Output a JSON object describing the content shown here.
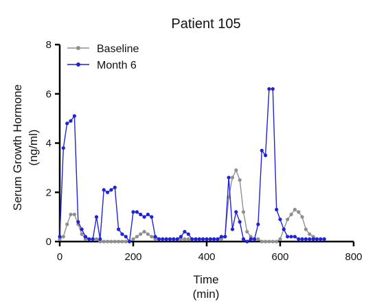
{
  "colors": {
    "baseline": "#8f8f8f",
    "month6": "#1f22d6",
    "axis": "#000000",
    "background": "#ffffff"
  },
  "chart_data": {
    "type": "line",
    "title": "Patient 105",
    "xlabel_line1": "Time",
    "xlabel_line2": "(min)",
    "ylabel_line1": "Serum Growth Hormone",
    "ylabel_line2": "(ng/ml)",
    "xlim": [
      0,
      800
    ],
    "ylim": [
      0,
      8
    ],
    "x_ticks": [
      0,
      200,
      400,
      600,
      800
    ],
    "y_ticks": [
      0,
      2,
      4,
      6,
      8
    ],
    "grid": false,
    "legend_position": "top-left",
    "series": [
      {
        "name": "Baseline",
        "color": "#8f8f8f",
        "x": [
          0,
          10,
          20,
          30,
          40,
          50,
          60,
          70,
          80,
          90,
          100,
          110,
          120,
          130,
          140,
          150,
          160,
          170,
          180,
          190,
          200,
          210,
          220,
          230,
          240,
          250,
          260,
          270,
          280,
          290,
          300,
          310,
          320,
          330,
          340,
          350,
          360,
          370,
          380,
          390,
          400,
          410,
          420,
          430,
          440,
          450,
          460,
          470,
          480,
          490,
          500,
          510,
          520,
          530,
          540,
          550,
          560,
          570,
          580,
          590,
          600,
          610,
          620,
          630,
          640,
          650,
          660,
          670,
          680,
          690,
          700,
          710,
          720
        ],
        "values": [
          0.1,
          0.2,
          0.7,
          1.1,
          1.1,
          0.7,
          0.3,
          0.1,
          0.1,
          0.1,
          0.1,
          0.0,
          0.0,
          0.0,
          0.0,
          0.0,
          0.0,
          0.0,
          0.0,
          0.0,
          0.1,
          0.2,
          0.3,
          0.4,
          0.3,
          0.2,
          0.1,
          0.1,
          0.1,
          0.1,
          0.1,
          0.1,
          0.1,
          0.1,
          0.1,
          0.1,
          0.1,
          0.1,
          0.1,
          0.1,
          0.1,
          0.1,
          0.1,
          0.1,
          0.1,
          0.2,
          1.8,
          2.6,
          2.9,
          2.5,
          1.2,
          0.4,
          0.2,
          0.1,
          0.1,
          0.0,
          0.0,
          0.0,
          0.0,
          0.0,
          0.1,
          0.5,
          0.9,
          1.1,
          1.3,
          1.2,
          1.0,
          0.5,
          0.3,
          0.2,
          0.1,
          0.1,
          0.1
        ]
      },
      {
        "name": "Month 6",
        "color": "#1f22d6",
        "x": [
          0,
          10,
          20,
          30,
          40,
          50,
          60,
          70,
          80,
          90,
          100,
          110,
          120,
          130,
          140,
          150,
          160,
          170,
          180,
          190,
          200,
          210,
          220,
          230,
          240,
          250,
          260,
          270,
          280,
          290,
          300,
          310,
          320,
          330,
          340,
          350,
          360,
          370,
          380,
          390,
          400,
          410,
          420,
          430,
          440,
          450,
          460,
          470,
          480,
          490,
          500,
          510,
          520,
          530,
          540,
          550,
          560,
          570,
          580,
          590,
          600,
          610,
          620,
          630,
          640,
          650,
          660,
          670,
          680,
          690,
          700,
          710,
          720
        ],
        "values": [
          0.2,
          3.8,
          4.8,
          4.9,
          5.1,
          0.8,
          0.5,
          0.2,
          0.1,
          0.1,
          1.0,
          0.1,
          2.1,
          2.0,
          2.1,
          2.2,
          0.5,
          0.3,
          0.2,
          0.0,
          1.2,
          1.2,
          1.1,
          1.0,
          1.1,
          1.0,
          0.2,
          0.1,
          0.1,
          0.1,
          0.1,
          0.1,
          0.1,
          0.2,
          0.4,
          0.3,
          0.1,
          0.1,
          0.1,
          0.1,
          0.1,
          0.1,
          0.1,
          0.1,
          0.2,
          0.2,
          2.6,
          0.5,
          1.2,
          0.8,
          0.1,
          0.0,
          0.1,
          0.1,
          0.7,
          3.7,
          3.5,
          6.2,
          6.2,
          1.3,
          0.9,
          0.5,
          0.2,
          0.2,
          0.2,
          0.1,
          0.1,
          0.1,
          0.1,
          0.1,
          0.1,
          0.1,
          0.1
        ]
      }
    ]
  }
}
